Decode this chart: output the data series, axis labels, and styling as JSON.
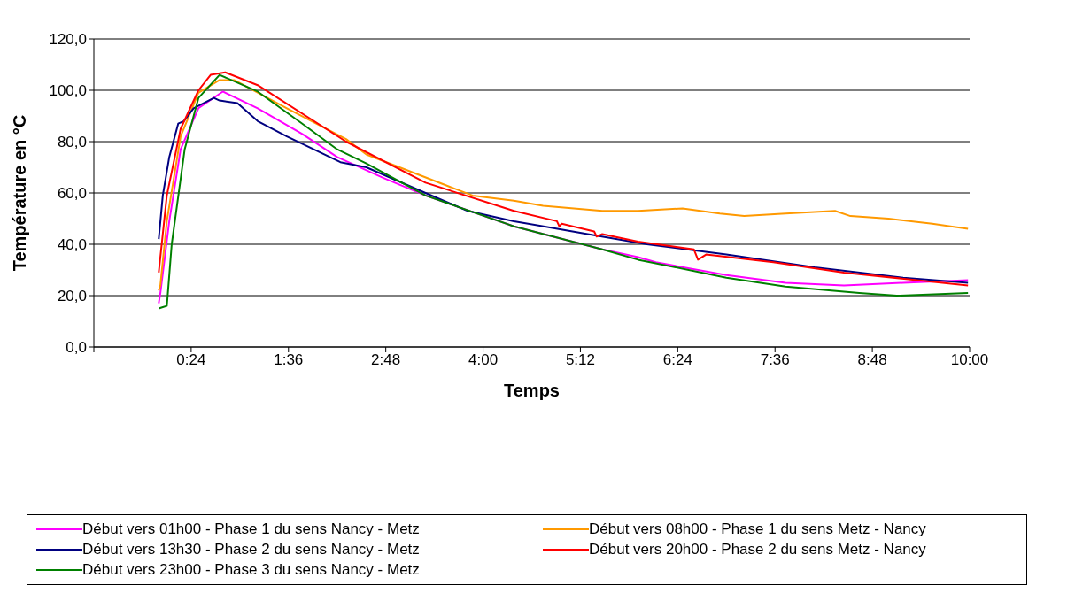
{
  "chart_data": {
    "type": "line",
    "xlabel": "Temps",
    "ylabel": "Température en °C",
    "xlim": [
      -0.8,
      10
    ],
    "xticks": [
      {
        "value": -0.8,
        "label": null
      },
      {
        "value": 0.4,
        "label": "0:24"
      },
      {
        "value": 1.6,
        "label": "1:36"
      },
      {
        "value": 2.8,
        "label": "2:48"
      },
      {
        "value": 4.0,
        "label": "4:00"
      },
      {
        "value": 5.2,
        "label": "5:12"
      },
      {
        "value": 6.4,
        "label": "6:24"
      },
      {
        "value": 7.6,
        "label": "7:36"
      },
      {
        "value": 8.8,
        "label": "8:48"
      },
      {
        "value": 10.0,
        "label": "10:00"
      }
    ],
    "ylim": [
      0,
      120
    ],
    "yticks": [
      {
        "value": 0,
        "label": "0,0"
      },
      {
        "value": 20,
        "label": "20,0"
      },
      {
        "value": 40,
        "label": "40,0"
      },
      {
        "value": 60,
        "label": "60,0"
      },
      {
        "value": 80,
        "label": "80,0"
      },
      {
        "value": 100,
        "label": "100,0"
      },
      {
        "value": 120,
        "label": "120,0"
      }
    ],
    "grid": "y",
    "legend": "bottom",
    "marker": "none",
    "line_style": "solid",
    "series": [
      {
        "name": "Début vers 01h00 - Phase 1 du sens Nancy - Metz",
        "color": "#ff00ff",
        "x": [
          0,
          0.02,
          0.13,
          0.27,
          0.49,
          0.79,
          1.22,
          1.77,
          2.2,
          2.76,
          3.29,
          4.38,
          5.47,
          5.91,
          6.13,
          7.0,
          7.73,
          8.45,
          9.18,
          9.98
        ],
        "values": [
          17,
          21,
          49,
          77,
          93,
          99.5,
          93,
          83,
          74,
          66,
          59,
          47,
          38,
          35,
          33,
          28,
          25,
          24,
          25,
          26
        ]
      },
      {
        "name": "Début vers 08h00 - Phase 1 du sens Metz - Nancy",
        "color": "#ff9900",
        "x": [
          0,
          0.02,
          0.1,
          0.27,
          0.49,
          0.75,
          0.93,
          1.58,
          2.31,
          2.56,
          3.54,
          3.87,
          4.38,
          4.74,
          5.47,
          5.91,
          6.46,
          6.92,
          7.22,
          7.73,
          8.34,
          8.53,
          9.0,
          9.54,
          9.98
        ],
        "values": [
          22,
          24,
          49,
          82,
          99,
          104,
          104,
          93,
          81,
          75,
          63,
          59,
          57,
          55,
          53,
          53,
          54,
          52,
          51,
          52,
          53,
          51,
          50,
          48,
          46
        ]
      },
      {
        "name": "Début vers 13h30 - Phase 2 du sens Nancy - Metz",
        "color": "#000080",
        "x": [
          0,
          0.05,
          0.13,
          0.24,
          0.31,
          0.43,
          0.68,
          0.75,
          0.97,
          1.22,
          1.58,
          2.24,
          2.56,
          3.29,
          3.81,
          4.38,
          5.29,
          6.02,
          7.0,
          8.09,
          9.18,
          9.98
        ],
        "values": [
          42,
          59,
          74,
          87,
          88,
          93,
          97,
          96,
          95,
          88,
          82,
          72,
          70,
          60,
          53,
          49,
          44,
          40,
          36,
          31,
          27,
          25
        ]
      },
      {
        "name": "Début vers 20h00 - Phase 2 du sens Metz - Nancy",
        "color": "#ff0000",
        "x": [
          0,
          0.1,
          0.27,
          0.49,
          0.64,
          0.82,
          1.22,
          2.31,
          3.29,
          4.38,
          4.91,
          4.94,
          4.97,
          5.37,
          5.4,
          5.47,
          5.91,
          6.6,
          6.65,
          6.75,
          7.58,
          8.45,
          9.98
        ],
        "values": [
          29,
          59,
          85,
          100,
          106,
          107,
          102,
          80,
          64,
          53,
          49,
          47,
          48,
          45,
          43,
          44,
          41,
          38,
          34,
          36,
          33,
          29,
          24
        ]
      },
      {
        "name": "Début vers 23h00 - Phase 3 du sens Nancy - Metz",
        "color": "#008000",
        "x": [
          0,
          0.05,
          0.1,
          0.16,
          0.32,
          0.49,
          0.75,
          1.22,
          1.77,
          2.2,
          2.56,
          3.29,
          4.38,
          5.47,
          5.91,
          7.0,
          7.73,
          8.64,
          9.1,
          9.98
        ],
        "values": [
          15,
          15.5,
          16,
          40,
          77,
          97,
          106,
          99.5,
          87,
          77,
          71.5,
          59,
          47,
          38,
          34,
          27,
          23.5,
          21,
          20,
          21
        ]
      }
    ]
  }
}
